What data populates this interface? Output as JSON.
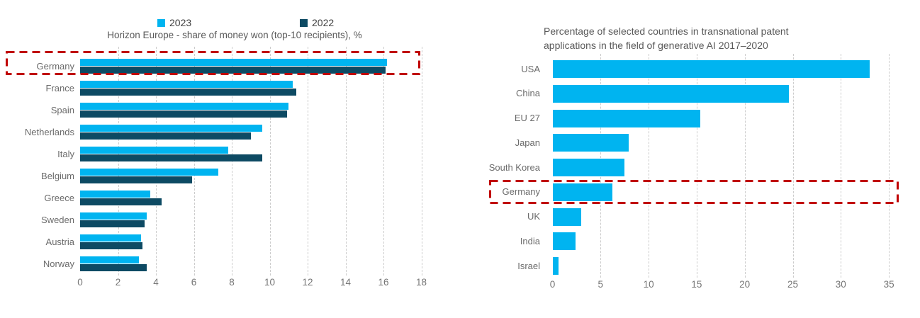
{
  "colors": {
    "bar_light_blue": "#00b4f0",
    "bar_dark_navy": "#0d4a63",
    "highlight_red": "#c00000",
    "gridline_gray": "#cccccc",
    "label_gray": "#6b6b6b",
    "title_gray": "#595959"
  },
  "highlight": {
    "label": "Germany"
  },
  "chart_data": [
    {
      "type": "bar",
      "orientation": "horizontal",
      "title": "Horizon Europe - share of money won (top-10 recipients), %",
      "categories": [
        "Germany",
        "France",
        "Spain",
        "Netherlands",
        "Italy",
        "Belgium",
        "Greece",
        "Sweden",
        "Austria",
        "Norway"
      ],
      "series": [
        {
          "name": "2023",
          "color": "#00b4f0",
          "values": [
            16.2,
            11.2,
            11.0,
            9.6,
            7.8,
            7.3,
            3.7,
            3.5,
            3.2,
            3.1
          ]
        },
        {
          "name": "2022",
          "color": "#0d4a63",
          "values": [
            16.1,
            11.4,
            10.9,
            9.0,
            9.6,
            5.9,
            4.3,
            3.4,
            3.3,
            3.5
          ]
        }
      ],
      "xlim": [
        0,
        18
      ],
      "xticks": [
        0,
        2,
        4,
        6,
        8,
        10,
        12,
        14,
        16,
        18
      ],
      "legend_position": "top",
      "grid": "vertical-dashed",
      "highlighted_category": "Germany"
    },
    {
      "type": "bar",
      "orientation": "horizontal",
      "title": "Percentage of selected countries in transnational patent applications in the field of generative AI 2017–2020",
      "title_lines": [
        "Percentage of selected countries in transnational patent",
        "applications in the field of generative AI 2017–2020"
      ],
      "categories": [
        "USA",
        "China",
        "EU 27",
        "Japan",
        "South Korea",
        "Germany",
        "UK",
        "India",
        "Israel"
      ],
      "series": [
        {
          "name": "share",
          "color": "#00b4f0",
          "values": [
            33,
            24.6,
            15.4,
            7.9,
            7.5,
            6.2,
            3.0,
            2.4,
            0.6
          ]
        }
      ],
      "xlim": [
        0,
        35
      ],
      "xticks": [
        0,
        5,
        10,
        15,
        20,
        25,
        30,
        35
      ],
      "legend_position": "none",
      "grid": "vertical-dashed",
      "highlighted_category": "Germany"
    }
  ]
}
